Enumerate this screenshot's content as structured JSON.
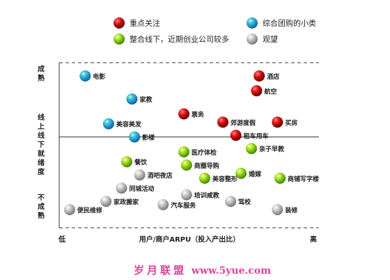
{
  "chart_data": {
    "type": "scatter",
    "xlabel": "用户/商户ARPU（投入产出比）",
    "x_low_label": "低",
    "x_high_label": "高",
    "xlim": [
      0,
      100
    ],
    "ylim": [
      0,
      100
    ],
    "y_band_labels": [
      {
        "text": "成熟",
        "band": "top"
      },
      {
        "text": "线上线下就绪度",
        "band": "middle"
      },
      {
        "text": "不成熟",
        "band": "bottom"
      }
    ],
    "legend": [
      {
        "name": "重点关注",
        "color": "#d01010"
      },
      {
        "name": "综合团购的小类",
        "color": "#2aa6d8"
      },
      {
        "name": "整合线下，近期创业公司较多",
        "color": "#8fd81a"
      },
      {
        "name": "观望",
        "color": "#b8b8b8"
      }
    ],
    "divider_y": 55,
    "points": [
      {
        "label": "电影",
        "x": 10,
        "y": 92,
        "group": 1
      },
      {
        "label": "家教",
        "x": 28,
        "y": 78,
        "group": 1
      },
      {
        "label": "美容美发",
        "x": 19,
        "y": 63,
        "group": 1
      },
      {
        "label": "影楼",
        "x": 29,
        "y": 55,
        "group": 1
      },
      {
        "label": "酒店",
        "x": 77,
        "y": 92,
        "group": 0
      },
      {
        "label": "航空",
        "x": 76,
        "y": 83,
        "group": 0
      },
      {
        "label": "票务",
        "x": 48,
        "y": 69,
        "group": 0
      },
      {
        "label": "郊游度假",
        "x": 63,
        "y": 64,
        "group": 0
      },
      {
        "label": "买房",
        "x": 84,
        "y": 64,
        "group": 0
      },
      {
        "label": "租车用车",
        "x": 68,
        "y": 56,
        "group": 0
      },
      {
        "label": "亲子早教",
        "x": 74,
        "y": 48,
        "group": 2
      },
      {
        "label": "医疗体检",
        "x": 48,
        "y": 46,
        "group": 2
      },
      {
        "label": "餐饮",
        "x": 26,
        "y": 40,
        "group": 2
      },
      {
        "label": "商圈导购",
        "x": 49,
        "y": 38,
        "group": 2
      },
      {
        "label": "婚嫁",
        "x": 70,
        "y": 33,
        "group": 2
      },
      {
        "label": "美容整形",
        "x": 56,
        "y": 30,
        "group": 2
      },
      {
        "label": "商铺写字楼",
        "x": 85,
        "y": 30,
        "group": 2
      },
      {
        "label": "酒吧夜店",
        "x": 31,
        "y": 32,
        "group": 3
      },
      {
        "label": "同城活动",
        "x": 24,
        "y": 24,
        "group": 3
      },
      {
        "label": "培训咸教",
        "x": 49,
        "y": 20,
        "group": 3
      },
      {
        "label": "家政搬家",
        "x": 18,
        "y": 16,
        "group": 3
      },
      {
        "label": "汽车服务",
        "x": 40,
        "y": 14,
        "group": 3
      },
      {
        "label": "驾校",
        "x": 66,
        "y": 16,
        "group": 3
      },
      {
        "label": "便民维修",
        "x": 4,
        "y": 11,
        "group": 3
      },
      {
        "label": "装修",
        "x": 84,
        "y": 11,
        "group": 3
      }
    ]
  },
  "watermark": {
    "name": "岁月联盟",
    "site": "www.5yue.com"
  }
}
